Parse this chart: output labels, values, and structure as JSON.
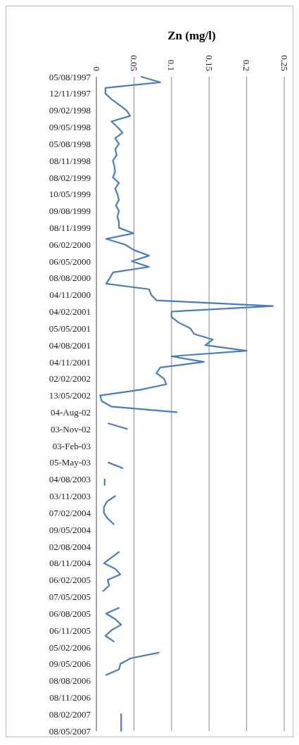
{
  "chart_data": {
    "type": "line",
    "title": "Zn (mg/l)",
    "orientation": "horizontal",
    "categories": [
      "05/08/1997",
      null,
      null,
      "12/11/1997",
      null,
      null,
      "09/02/1998",
      null,
      null,
      "09/05/1998",
      null,
      null,
      "05/08/1998",
      null,
      null,
      "08/11/1998",
      null,
      null,
      "08/02/1999",
      null,
      null,
      "10/05/1999",
      null,
      null,
      "09/08/1999",
      null,
      null,
      "08/11/1999",
      null,
      null,
      "06/02/2000",
      null,
      null,
      "06/05/2000",
      null,
      null,
      "08/08/2000",
      null,
      null,
      "04/11/2000",
      null,
      null,
      "04/02/2001",
      null,
      null,
      "05/05/2001",
      null,
      null,
      "04/08/2001",
      null,
      null,
      "04/11/2001",
      null,
      null,
      "02/02/2002",
      null,
      null,
      "13/05/2002",
      null,
      null,
      "04-Aug-02",
      null,
      null,
      "03-Nov-02",
      null,
      null,
      "03-Feb-03",
      null,
      null,
      "05-May-03",
      null,
      null,
      "04/08/2003",
      null,
      null,
      "03/11/2003",
      null,
      null,
      "07/02/2004",
      null,
      null,
      "09/05/2004",
      null,
      null,
      "02/08/2004",
      null,
      null,
      "08/11/2004",
      null,
      null,
      "06/02/2005",
      null,
      null,
      "07/05/2005",
      null,
      null,
      "06/08/2005",
      null,
      null,
      "06/11/2005",
      null,
      null,
      "05/02/2006",
      null,
      null,
      "09/05/2006",
      null,
      null,
      "08/08/2006",
      null,
      null,
      "08/11/2006",
      null,
      null,
      "08/02/2007",
      null,
      null,
      "08/05/2007"
    ],
    "series": [
      {
        "color": "#4a7ebb",
        "values": [
          0.06,
          0.085,
          0.012,
          0.012,
          0.02,
          0.03,
          0.04,
          0.045,
          0.02,
          0.028,
          0.035,
          0.025,
          0.03,
          0.025,
          0.027,
          0.022,
          0.024,
          0.025,
          0.022,
          0.03,
          0.025,
          0.028,
          0.03,
          0.026,
          0.03,
          0.028,
          0.03,
          0.03,
          0.049,
          0.013,
          0.038,
          0.05,
          0.07,
          0.047,
          0.07,
          0.022,
          0.018,
          0.013,
          0.07,
          0.073,
          0.08,
          0.235,
          0.1,
          0.1,
          0.11,
          0.125,
          0.13,
          0.155,
          0.145,
          0.2,
          0.1,
          0.143,
          0.085,
          0.08,
          0.09,
          0.093,
          0.058,
          0.005,
          0.007,
          0.02,
          0.107,
          null,
          0.016,
          0.041,
          null,
          null,
          null,
          null,
          null,
          0.016,
          0.035,
          null,
          0.011,
          0.011,
          null,
          0.025,
          0.014,
          0.01,
          0.01,
          0.015,
          0.023,
          null,
          null,
          null,
          null,
          0.03,
          0.02,
          0.01,
          0.025,
          0.032,
          0.015,
          0.017,
          0.009,
          null,
          null,
          0.03,
          0.013,
          0.025,
          0.033,
          0.02,
          0.012,
          0.023,
          null,
          0.083,
          0.046,
          0.032,
          0.03,
          0.013,
          null,
          null,
          null,
          null,
          null,
          null,
          0.033,
          0.033,
          0.033,
          0.033
        ]
      }
    ],
    "xlim": [
      0,
      0.25
    ],
    "xticks": [
      0,
      0.05,
      0.1,
      0.15,
      0.2,
      0.25
    ],
    "grid": "x",
    "marker": "none",
    "line_style": "solid"
  }
}
